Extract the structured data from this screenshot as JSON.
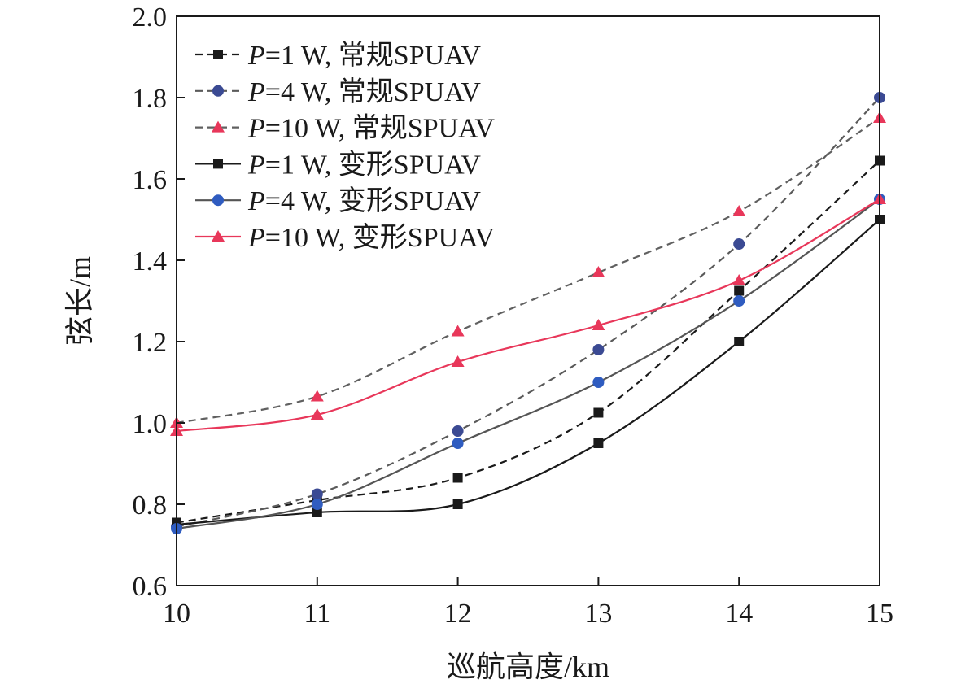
{
  "chart_data": {
    "type": "line",
    "xlabel": "巡航高度/km",
    "ylabel": "弦长/m",
    "xlim": [
      10,
      15
    ],
    "ylim": [
      0.6,
      2.0
    ],
    "x_ticks": [
      "10",
      "11",
      "12",
      "13",
      "14",
      "15"
    ],
    "y_ticks": [
      "0.6",
      "0.8",
      "1.0",
      "1.2",
      "1.4",
      "1.6",
      "1.8",
      "2.0"
    ],
    "x": [
      10,
      11,
      12,
      13,
      14,
      15
    ],
    "grid": false,
    "legend_position": "top-left",
    "series": [
      {
        "name": "=1 W, 常规SPUAV",
        "power": "P",
        "values": [
          0.755,
          0.81,
          0.865,
          1.025,
          1.325,
          1.645
        ],
        "line": "dashed",
        "marker": "square",
        "color": "#1a1a1a",
        "marker_color": "#1a1a1a"
      },
      {
        "name": "=4 W, 常规SPUAV",
        "power": "P",
        "values": [
          0.745,
          0.825,
          0.98,
          1.18,
          1.44,
          1.8
        ],
        "line": "dashed",
        "marker": "circle",
        "color": "#5a5a5a",
        "marker_color": "#3b4a93"
      },
      {
        "name": "=10 W, 常规SPUAV",
        "power": "P",
        "values": [
          1.0,
          1.065,
          1.225,
          1.37,
          1.52,
          1.75
        ],
        "line": "dashed",
        "marker": "triangle",
        "color": "#606060",
        "marker_color": "#e8375a"
      },
      {
        "name": "=1 W, 变形SPUAV",
        "power": "P",
        "values": [
          0.75,
          0.78,
          0.8,
          0.95,
          1.2,
          1.5
        ],
        "line": "solid",
        "marker": "square",
        "color": "#1a1a1a",
        "marker_color": "#1a1a1a"
      },
      {
        "name": "=4 W, 变形SPUAV",
        "power": "P",
        "values": [
          0.74,
          0.8,
          0.95,
          1.1,
          1.3,
          1.55
        ],
        "line": "solid",
        "marker": "circle",
        "color": "#555555",
        "marker_color": "#2f5cc0"
      },
      {
        "name": "=10 W, 变形SPUAV",
        "power": "P",
        "values": [
          0.98,
          1.02,
          1.15,
          1.24,
          1.35,
          1.55
        ],
        "line": "solid",
        "marker": "triangle",
        "color": "#e8375a",
        "marker_color": "#e8375a"
      }
    ]
  }
}
